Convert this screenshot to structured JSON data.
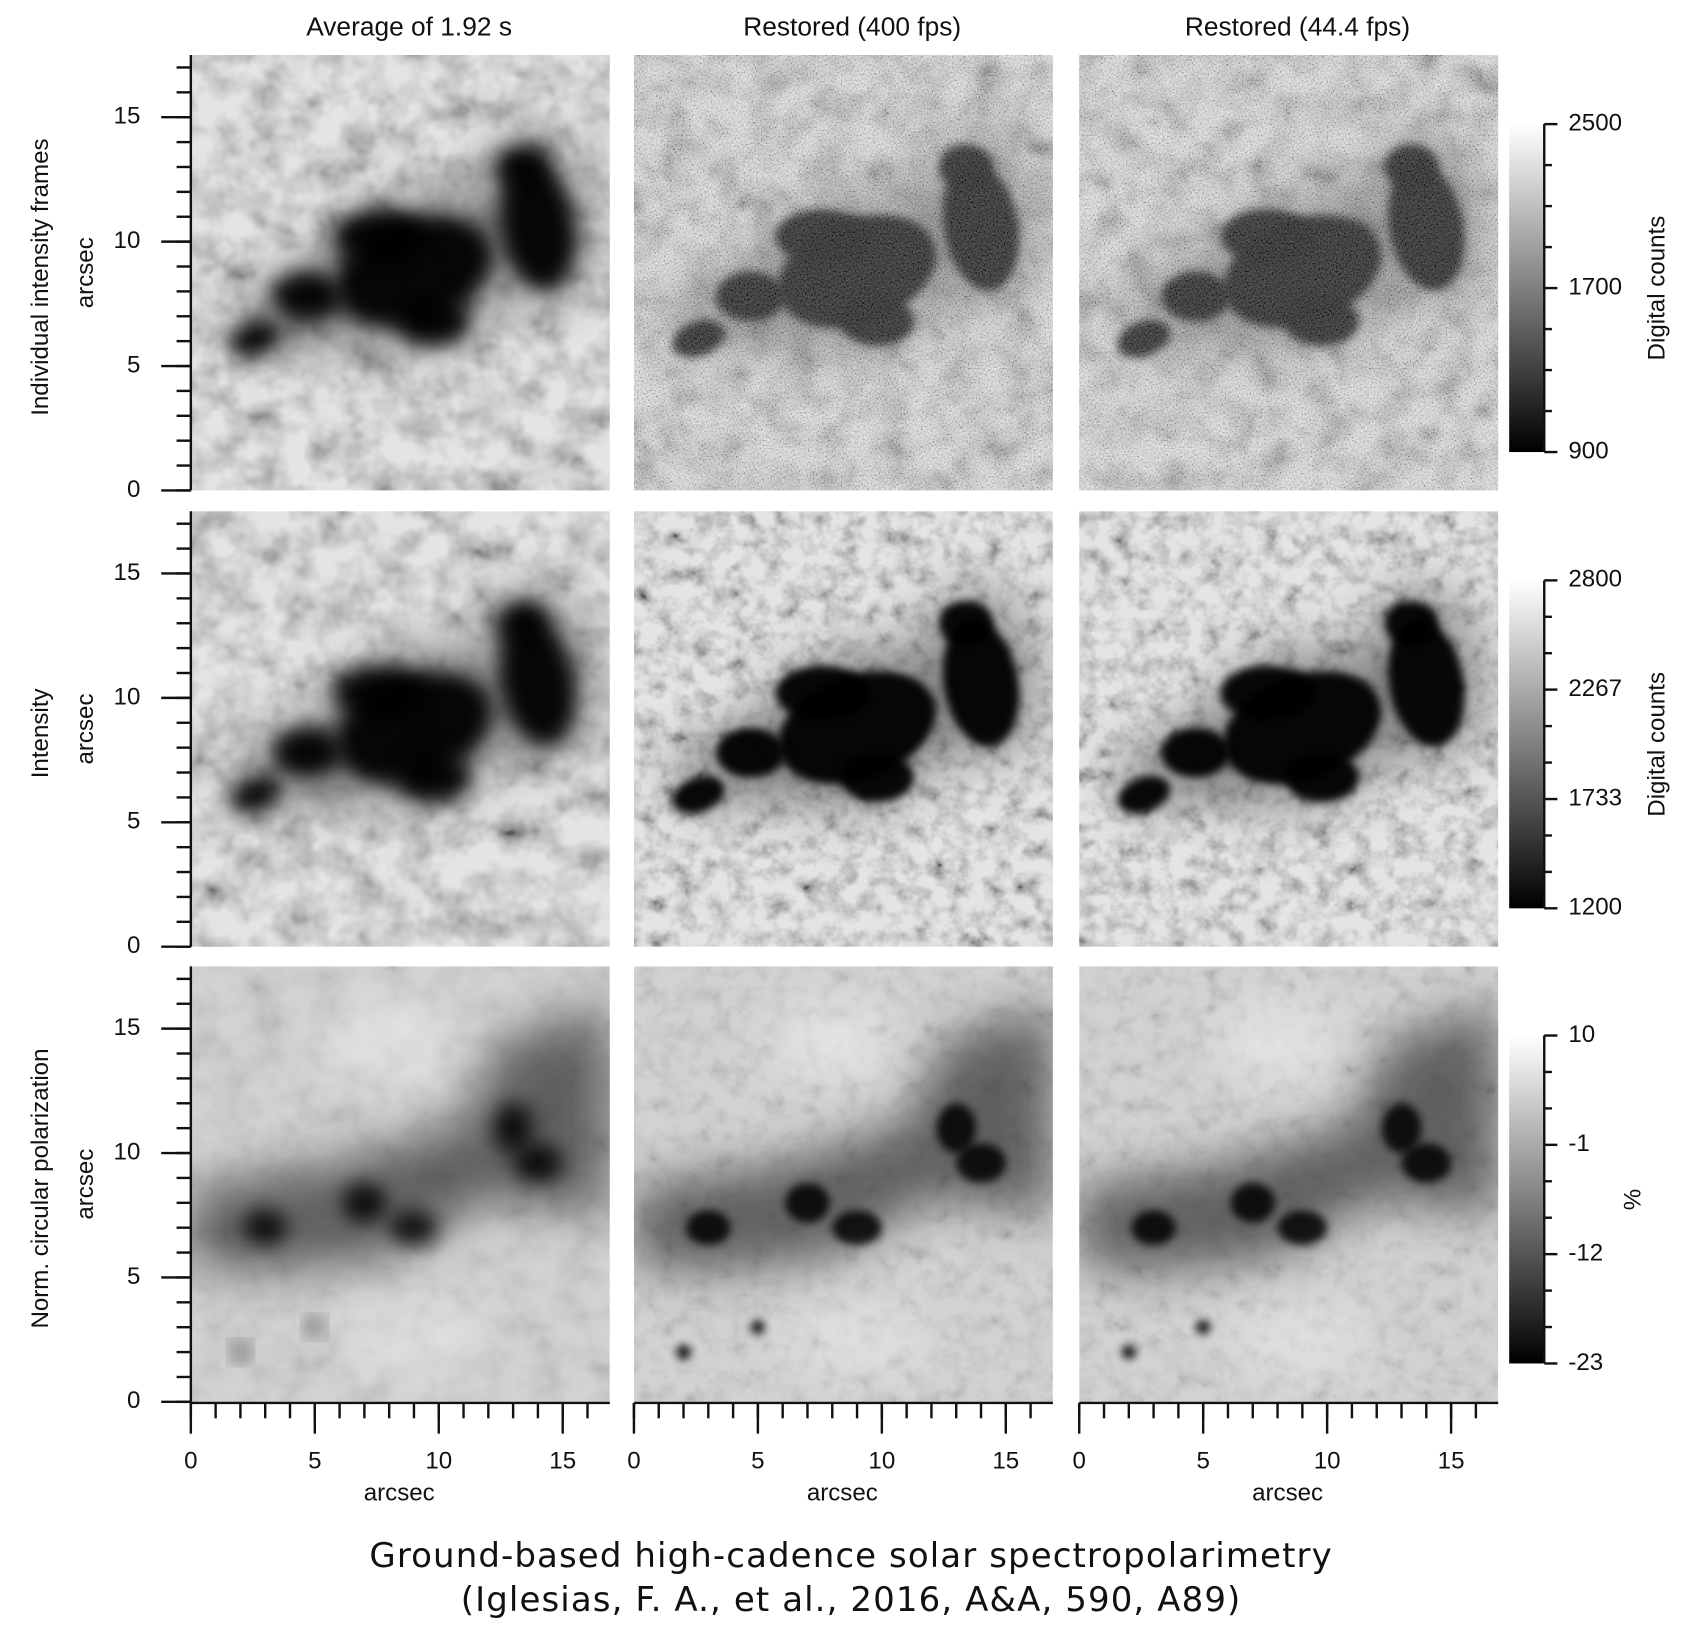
{
  "columns": [
    "Average of 1.92 s",
    "Restored (400 fps)",
    "Restored (44.4 fps)"
  ],
  "rows": [
    {
      "label": "Individual intensity frames",
      "y_label": "arcsec",
      "colorbar": {
        "label": "Digital counts",
        "lim": [
          900,
          2500
        ],
        "ticks": [
          900,
          1700,
          2500
        ]
      }
    },
    {
      "label": "Intensity",
      "y_label": "arcsec",
      "colorbar": {
        "label": "Digital counts",
        "lim": [
          1200,
          2800
        ],
        "ticks": [
          1200,
          1733,
          2267,
          2800
        ]
      }
    },
    {
      "label": "Norm. circular polarization",
      "y_label": "arcsec",
      "colorbar": {
        "label": "%",
        "lim": [
          -23,
          10
        ],
        "ticks": [
          -23,
          -12,
          -1,
          10
        ]
      }
    }
  ],
  "x_axis": {
    "label": "arcsec",
    "lim": [
      0,
      16.9
    ],
    "ticks": [
      0,
      5,
      10,
      15
    ]
  },
  "y_axis": {
    "lim": [
      0,
      17.5
    ],
    "ticks": [
      0,
      5,
      10,
      15
    ]
  },
  "caption": [
    "Ground-based high-cadence solar spectropolarimetry",
    "(Iglesias, F. A., et al., 2016, A&A, 590, A89)"
  ]
}
